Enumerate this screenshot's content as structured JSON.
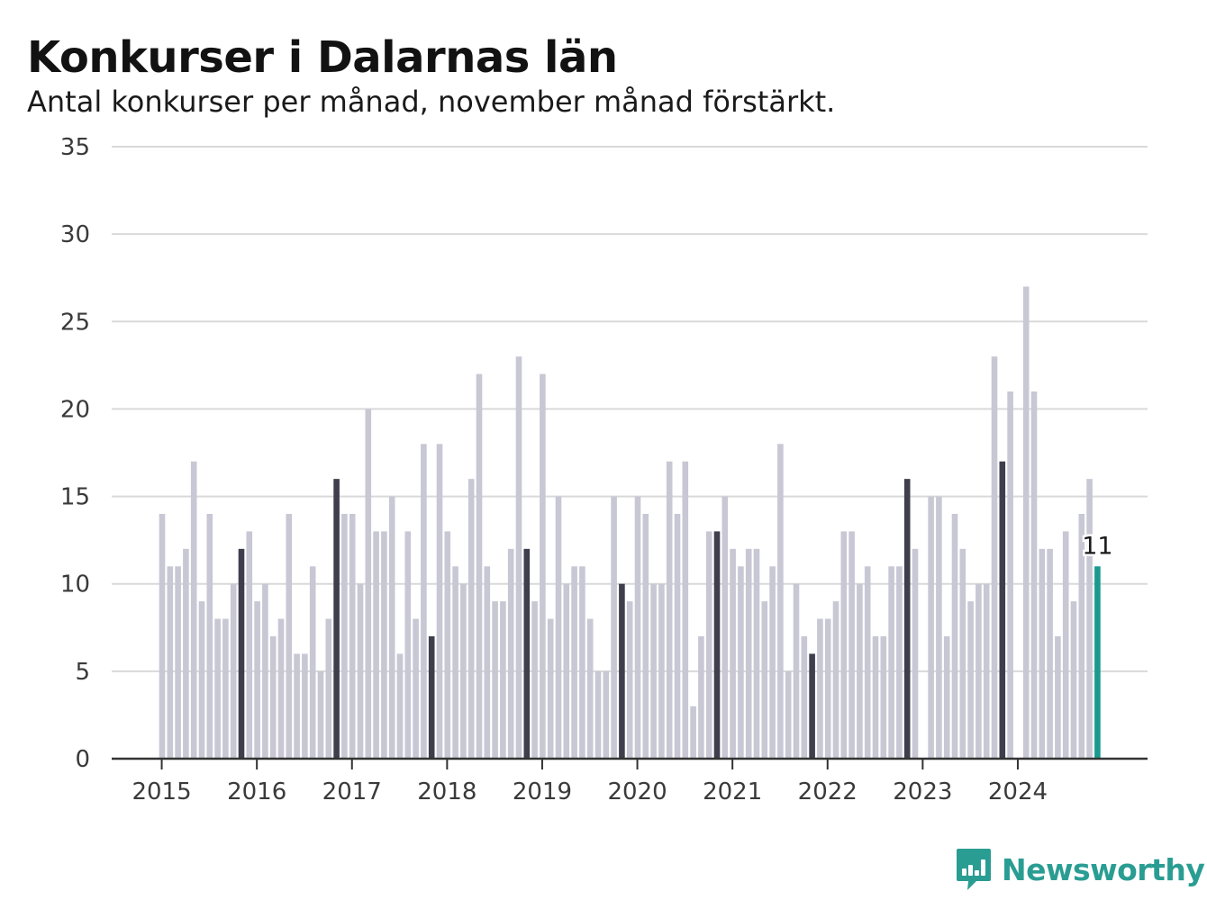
{
  "header": {
    "title": "Konkurser i Dalarnas län",
    "subtitle": "Antal konkurser per månad, november månad förstärkt."
  },
  "brand": {
    "name": "Newsworthy",
    "color": "#2a9d93"
  },
  "colors": {
    "bar_default": "#c8c7d4",
    "bar_november": "#3f3e4c",
    "bar_latest": "#1a9a8f",
    "grid": "#d9d9d9",
    "axis": "#333333"
  },
  "chart_data": {
    "type": "bar",
    "title": "Konkurser i Dalarnas län",
    "subtitle": "Antal konkurser per månad, november månad förstärkt.",
    "xlabel": "",
    "ylabel": "",
    "ylim": [
      0,
      35
    ],
    "yticks": [
      0,
      5,
      10,
      15,
      20,
      25,
      30,
      35
    ],
    "grid": true,
    "x_tick_labels": [
      "2015",
      "2016",
      "2017",
      "2018",
      "2019",
      "2020",
      "2021",
      "2022",
      "2023",
      "2024"
    ],
    "start_month": "2015-01",
    "highlight": "november",
    "latest_label": "11",
    "values": [
      14,
      11,
      11,
      12,
      17,
      9,
      14,
      8,
      8,
      10,
      12,
      13,
      9,
      10,
      7,
      8,
      14,
      6,
      6,
      11,
      5,
      8,
      16,
      14,
      14,
      10,
      20,
      13,
      13,
      15,
      6,
      13,
      8,
      18,
      7,
      18,
      13,
      11,
      10,
      16,
      22,
      11,
      9,
      9,
      12,
      23,
      12,
      9,
      22,
      8,
      15,
      10,
      11,
      11,
      8,
      5,
      5,
      15,
      10,
      9,
      15,
      14,
      10,
      10,
      17,
      14,
      17,
      3,
      7,
      13,
      13,
      15,
      12,
      11,
      12,
      12,
      9,
      11,
      18,
      5,
      10,
      7,
      6,
      8,
      8,
      9,
      13,
      13,
      10,
      11,
      7,
      7,
      11,
      11,
      16,
      12,
      0,
      15,
      15,
      7,
      14,
      12,
      9,
      10,
      10,
      23,
      17,
      21,
      0,
      27,
      21,
      12,
      12,
      7,
      13,
      9,
      14,
      16,
      11
    ]
  }
}
